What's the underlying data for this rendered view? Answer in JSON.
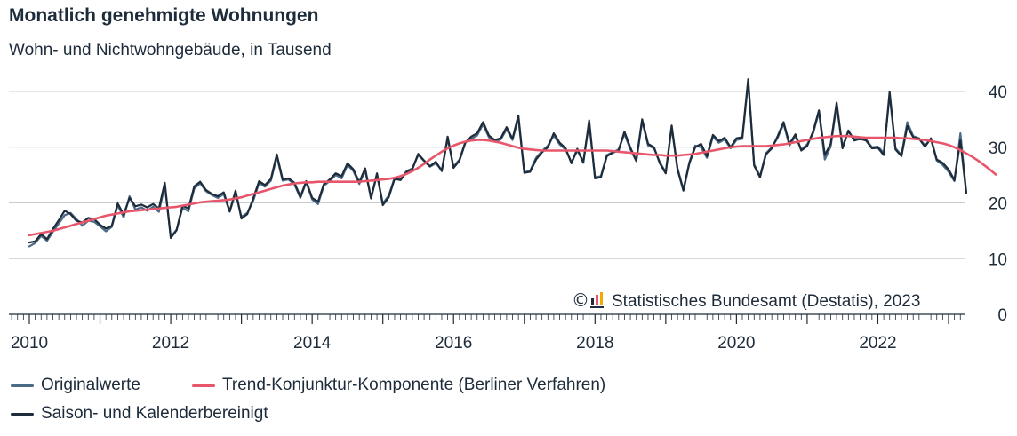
{
  "chart_data": {
    "type": "line",
    "title": "Monatlich genehmigte Wohnungen",
    "subtitle": "Wohn- und Nichtwohngebäude, in Tausend",
    "source": "Statistisches Bundesamt (Destatis), 2023",
    "copyright_symbol": "©",
    "x_tick_labels": [
      "2010",
      "2012",
      "2014",
      "2016",
      "2018",
      "2020",
      "2022"
    ],
    "y_tick_labels": [
      "0",
      "10",
      "20",
      "30",
      "40"
    ],
    "ylim": [
      0,
      40
    ],
    "x_start": "2010-01",
    "x_end": "2023-01",
    "grid": true,
    "legend_position": "bottom",
    "series": [
      {
        "name": "Originalwerte",
        "color": "#4a6a86",
        "values": [
          12.2,
          12.8,
          14.1,
          13.2,
          14.8,
          16.3,
          17.8,
          18.2,
          17.1,
          15.9,
          16.8,
          16.6,
          15.8,
          14.9,
          15.7,
          19.6,
          17.4,
          21.2,
          18.8,
          19.2,
          18.6,
          19.3,
          18.4,
          23.1,
          13.9,
          15.2,
          19.1,
          18.5,
          22.6,
          23.5,
          22.1,
          21.4,
          20.9,
          21.6,
          18.4,
          21.8,
          17.5,
          18.2,
          20.4,
          23.6,
          22.9,
          24.0,
          28.3,
          24.0,
          24.2,
          23.3,
          20.9,
          23.7,
          20.6,
          19.8,
          23.1,
          23.9,
          25.0,
          24.4,
          26.8,
          25.7,
          23.4,
          25.8,
          20.9,
          25.0,
          19.9,
          21.3,
          24.5,
          24.2,
          25.7,
          26.2,
          28.6,
          27.5,
          26.5,
          27.1,
          25.9,
          31.5,
          26.5,
          27.8,
          31.0,
          31.5,
          32.1,
          34.1,
          31.8,
          31.0,
          31.4,
          33.2,
          31.3,
          35.2,
          25.5,
          25.8,
          28.1,
          29.3,
          30.3,
          32.1,
          30.5,
          29.6,
          27.3,
          29.4,
          27.4,
          34.4,
          24.6,
          24.8,
          28.6,
          29.1,
          29.6,
          32.4,
          29.6,
          27.5,
          34.7,
          30.3,
          29.8,
          27.3,
          25.5,
          33.5,
          26.2,
          22.4,
          27.3,
          30.3,
          30.0,
          28.1,
          31.9,
          30.8,
          31.4,
          29.8,
          31.3,
          31.5,
          41.8,
          26.9,
          24.8,
          28.9,
          30.0,
          31.7,
          34.2,
          30.3,
          32.0,
          29.6,
          30.5,
          32.5,
          36.3,
          27.8,
          30.1,
          37.6,
          30.1,
          32.8,
          31.5,
          31.4,
          31.4,
          30.0,
          30.1,
          29.0,
          39.4,
          29.8,
          28.6,
          34.5,
          32.0,
          31.6,
          30.3,
          31.5,
          27.6,
          26.8,
          25.6,
          23.9,
          32.5,
          22.0
        ]
      },
      {
        "name": "Saison- und Kalenderbereinigt",
        "color": "#1d2b3a",
        "values": [
          12.9,
          13.1,
          14.4,
          13.5,
          15.3,
          16.9,
          18.6,
          18.0,
          16.8,
          16.5,
          17.3,
          17.1,
          16.1,
          15.4,
          15.9,
          19.9,
          17.9,
          20.9,
          19.4,
          19.7,
          19.2,
          19.8,
          19.0,
          23.6,
          13.7,
          15.1,
          19.5,
          19.0,
          23.0,
          23.8,
          22.3,
          21.6,
          21.2,
          21.9,
          18.5,
          22.2,
          17.2,
          18.0,
          20.8,
          23.9,
          23.2,
          24.3,
          28.7,
          24.2,
          24.4,
          23.6,
          21.1,
          23.9,
          20.9,
          20.2,
          23.4,
          24.2,
          25.3,
          24.8,
          27.1,
          26.0,
          23.7,
          26.2,
          20.8,
          25.3,
          19.6,
          21.0,
          24.3,
          24.1,
          25.5,
          26.0,
          28.8,
          27.6,
          26.6,
          27.4,
          25.7,
          31.9,
          26.3,
          27.6,
          30.8,
          31.9,
          32.5,
          34.5,
          32.1,
          31.3,
          31.6,
          33.6,
          31.5,
          35.7,
          25.4,
          25.6,
          27.8,
          29.1,
          30.0,
          32.5,
          30.8,
          29.8,
          27.1,
          29.7,
          27.2,
          34.8,
          24.4,
          24.6,
          28.4,
          29.0,
          29.4,
          32.8,
          29.9,
          27.6,
          35.0,
          30.6,
          30.0,
          27.1,
          25.3,
          33.9,
          26.0,
          22.2,
          27.1,
          30.0,
          30.6,
          28.4,
          32.2,
          31.1,
          31.7,
          30.0,
          31.6,
          31.8,
          42.2,
          26.7,
          24.6,
          28.7,
          29.8,
          32.0,
          34.5,
          30.6,
          32.3,
          29.4,
          30.2,
          32.8,
          36.6,
          28.6,
          30.6,
          38.0,
          29.8,
          33.0,
          31.2,
          31.5,
          31.2,
          29.8,
          29.9,
          28.6,
          39.9,
          29.6,
          28.4,
          33.8,
          31.8,
          31.5,
          30.1,
          31.6,
          27.8,
          27.2,
          26.0,
          24.1,
          31.2,
          21.8
        ]
      },
      {
        "name": "Trend-Konjunktur-Komponente (Berliner Verfahren)",
        "color": "#e8566c",
        "values": [
          14.2,
          14.4,
          14.6,
          14.8,
          15.0,
          15.3,
          15.6,
          15.9,
          16.2,
          16.5,
          16.8,
          17.1,
          17.4,
          17.7,
          17.9,
          18.1,
          18.3,
          18.5,
          18.6,
          18.7,
          18.8,
          18.9,
          19.0,
          19.1,
          19.2,
          19.3,
          19.5,
          19.7,
          19.9,
          20.1,
          20.2,
          20.3,
          20.4,
          20.5,
          20.6,
          20.8,
          21.0,
          21.3,
          21.6,
          21.9,
          22.2,
          22.5,
          22.8,
          23.1,
          23.3,
          23.5,
          23.6,
          23.7,
          23.7,
          23.8,
          23.8,
          23.8,
          23.8,
          23.8,
          23.8,
          23.8,
          23.8,
          23.9,
          24.0,
          24.1,
          24.2,
          24.3,
          24.5,
          24.8,
          25.2,
          25.7,
          26.3,
          27.0,
          27.8,
          28.5,
          29.2,
          29.8,
          30.3,
          30.7,
          31.0,
          31.2,
          31.3,
          31.3,
          31.2,
          31.0,
          30.8,
          30.5,
          30.2,
          29.9,
          29.7,
          29.6,
          29.5,
          29.4,
          29.4,
          29.4,
          29.4,
          29.4,
          29.4,
          29.4,
          29.4,
          29.4,
          29.4,
          29.4,
          29.4,
          29.3,
          29.2,
          29.1,
          29.0,
          28.9,
          28.8,
          28.7,
          28.6,
          28.6,
          28.5,
          28.5,
          28.5,
          28.6,
          28.7,
          28.8,
          29.0,
          29.2,
          29.4,
          29.6,
          29.8,
          30.0,
          30.1,
          30.2,
          30.2,
          30.2,
          30.2,
          30.2,
          30.3,
          30.4,
          30.5,
          30.7,
          30.9,
          31.1,
          31.3,
          31.5,
          31.7,
          31.8,
          31.9,
          32.0,
          32.0,
          32.0,
          31.9,
          31.8,
          31.7,
          31.7,
          31.7,
          31.7,
          31.7,
          31.7,
          31.6,
          31.6,
          31.5,
          31.4,
          31.3,
          31.1,
          30.9,
          30.7,
          30.4,
          30.0,
          29.5,
          28.9,
          28.3,
          27.6,
          26.8,
          26.0,
          25.1
        ]
      }
    ]
  },
  "legend": {
    "item1": "Originalwerte",
    "item2": "Trend-Konjunktur-Komponente (Berliner Verfahren)",
    "item3": "Saison- und Kalenderbereinigt"
  }
}
